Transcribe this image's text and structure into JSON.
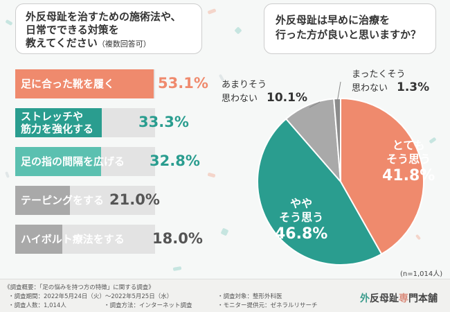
{
  "colors": {
    "salmon": "#ef8a6d",
    "teal_dark": "#2a9d8f",
    "teal_light": "#5bc0b0",
    "gray": "#a9a9a9",
    "gray_dark": "#8c8c8c"
  },
  "left_question": {
    "line1": "外反母趾を治すための施術法や、",
    "line2": "日常でできる対策を",
    "line3": "教えてください",
    "note": "（複数回答可）"
  },
  "right_question": {
    "line1": "外反母趾は早めに治療を",
    "line2": "行った方が良いと思いますか？"
  },
  "chart_data": [
    {
      "type": "bar",
      "title": "外反母趾を治すための施術法や、日常でできる対策を教えてください（複数回答可）",
      "categories": [
        "足に合った靴を履く",
        "ストレッチや筋力を強化する",
        "足の指の間隔を広げる",
        "テーピングをする",
        "ハイボルト療法をする"
      ],
      "display_labels": [
        [
          "足に合った靴を履く"
        ],
        [
          "ストレッチや",
          "筋力を強化する"
        ],
        [
          "足の指の間隔を広げる"
        ],
        [
          "テーピングをする"
        ],
        [
          "ハイボルト療法をする"
        ]
      ],
      "values": [
        53.1,
        33.3,
        32.8,
        21.0,
        18.0
      ],
      "value_labels": [
        "53.1%",
        "33.3%",
        "32.8%",
        "21.0%",
        "18.0%"
      ],
      "unit": "%"
    },
    {
      "type": "pie",
      "title": "外反母趾は早めに治療を行った方が良いと思いますか？",
      "categories": [
        "とてもそう思う",
        "ややそう思う",
        "あまりそう思わない",
        "まったくそう思わない"
      ],
      "display_labels": [
        [
          "とても",
          "そう思う"
        ],
        [
          "やや",
          "そう思う"
        ],
        [
          "あまりそう",
          "思わない"
        ],
        [
          "まったくそう",
          "思わない"
        ]
      ],
      "values": [
        41.8,
        46.8,
        10.1,
        1.3
      ],
      "value_labels": [
        "41.8%",
        "46.8%",
        "10.1%",
        "1.3%"
      ],
      "n_label": "(n=1,014人)"
    }
  ],
  "survey": {
    "overview": "《調査概要：「足の悩みを持つ方の特徴」に関する調査》",
    "period": "・調査期間：2022年5月24日（火）〜2022年5月25日（水）",
    "people": "・調査人数：1,014人",
    "method": "・調査方法：インターネット調査",
    "target": "・調査対象：整形外科医",
    "provider": "・モニター提供元：ゼネラルリサーチ"
  },
  "brand": {
    "part1": "外",
    "part2": "反母趾",
    "part3": "専",
    "part4": "門本舗"
  }
}
